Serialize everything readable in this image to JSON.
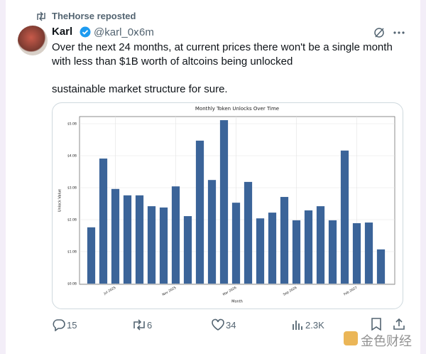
{
  "repost": "TheHorse reposted",
  "author": {
    "name": "Karl",
    "handle": "@karl_0x",
    "separator": "·",
    "time": "6m"
  },
  "text": [
    "Over the next 24 months, at current prices there won't be a single month",
    "with less than $1B worth of altcoins being unlocked",
    "sustainable market structure for sure."
  ],
  "actions": {
    "replies": "15",
    "reposts": "6",
    "likes": "34",
    "views": "2.3K"
  },
  "watermark": "金色财经",
  "chart_data": {
    "type": "bar",
    "title": "Monthly Token Unlocks Over Time",
    "x_label": "Month",
    "y_label": "Unlock Value",
    "categories": [
      null,
      null,
      "Jul 2025",
      null,
      null,
      null,
      null,
      "Nov 2025",
      null,
      null,
      null,
      null,
      "Mar 2026",
      null,
      null,
      null,
      null,
      "Sep 2026",
      null,
      null,
      null,
      null,
      "Feb 2027",
      null,
      null
    ],
    "values": [
      1.76,
      3.91,
      2.96,
      2.76,
      2.76,
      2.42,
      2.38,
      3.04,
      2.11,
      4.47,
      3.24,
      5.11,
      2.53,
      3.18,
      2.04,
      2.22,
      2.71,
      1.98,
      2.29,
      2.42,
      1.98,
      4.16,
      1.89,
      1.91,
      1.07
    ],
    "color": "#3b6499",
    "ylim": [
      0,
      5.3
    ],
    "yticks": [
      {
        "value": 0,
        "label": "$0.0B"
      },
      {
        "value": 1,
        "label": "$1.0B"
      },
      {
        "value": 2,
        "label": "$2.0B"
      },
      {
        "value": 3,
        "label": "$3.0B"
      },
      {
        "value": 4,
        "label": "$4.0B"
      },
      {
        "value": 5,
        "label": "$5.0B"
      }
    ],
    "grid": true
  }
}
